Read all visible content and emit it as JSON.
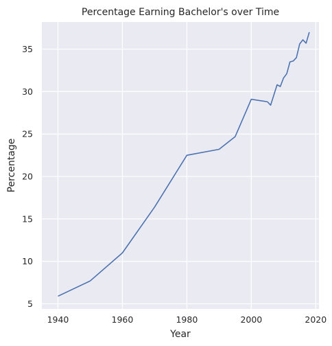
{
  "chart_data": {
    "type": "line",
    "title": "Percentage Earning Bachelor's over Time",
    "xlabel": "Year",
    "ylabel": "Percentage",
    "xlim": [
      1935,
      2021
    ],
    "ylim": [
      4.4,
      38.2
    ],
    "xticks": [
      1940,
      1960,
      1980,
      2000,
      2020
    ],
    "yticks": [
      5,
      10,
      15,
      20,
      25,
      30,
      35
    ],
    "grid": true,
    "background": "#eaeaf2",
    "line_color": "#4c72b0",
    "series": [
      {
        "x": [
          1940,
          1950,
          1960,
          1970,
          1980,
          1990,
          1995,
          2000,
          2005,
          2006,
          2007,
          2008,
          2009,
          2010,
          2011,
          2012,
          2013,
          2014,
          2015,
          2016,
          2017,
          2018
        ],
        "values": [
          5.9,
          7.7,
          11.0,
          16.4,
          22.5,
          23.2,
          24.7,
          29.1,
          28.8,
          28.4,
          29.6,
          30.8,
          30.6,
          31.6,
          32.1,
          33.5,
          33.6,
          34.0,
          35.6,
          36.1,
          35.7,
          37.0
        ]
      }
    ]
  }
}
